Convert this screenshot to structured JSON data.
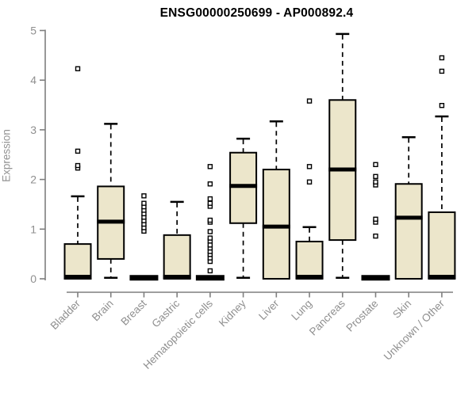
{
  "chart_data": {
    "type": "boxplot",
    "title": "ENSG00000250699 - AP000892.4",
    "ylabel": "Expression",
    "xlabel": "",
    "ylim": [
      0,
      5
    ],
    "yticks": [
      0,
      1,
      2,
      3,
      4,
      5
    ],
    "grid": false,
    "legend": "none",
    "categories": [
      "Bladder",
      "Brain",
      "Breast",
      "Gastric",
      "Hematopoietic cells",
      "Kidney",
      "Liver",
      "Lung",
      "Pancreas",
      "Prostate",
      "Skin",
      "Unknown / Other"
    ],
    "series": [
      {
        "category": "Bladder",
        "whisker_low": 0,
        "q1": 0,
        "median": 0.04,
        "q3": 0.7,
        "whisker_high": 1.66,
        "outliers": [
          2.23,
          2.28,
          2.57,
          4.23
        ]
      },
      {
        "category": "Brain",
        "whisker_low": 0.02,
        "q1": 0.4,
        "median": 1.15,
        "q3": 1.86,
        "whisker_high": 3.12,
        "outliers": []
      },
      {
        "category": "Breast",
        "whisker_low": 0,
        "q1": 0,
        "median": 0.02,
        "q3": 0,
        "whisker_high": 0,
        "outliers": [
          0.96,
          1.03,
          1.1,
          1.17,
          1.24,
          1.31,
          1.38,
          1.45,
          1.52,
          1.67
        ]
      },
      {
        "category": "Gastric",
        "whisker_low": 0,
        "q1": 0,
        "median": 0.04,
        "q3": 0.88,
        "whisker_high": 1.55,
        "outliers": []
      },
      {
        "category": "Hematopoietic cells",
        "whisker_low": 0,
        "q1": 0,
        "median": 0.02,
        "q3": 0,
        "whisker_high": 0,
        "outliers": [
          0.16,
          0.35,
          0.42,
          0.49,
          0.55,
          0.62,
          0.68,
          0.76,
          0.82,
          0.95,
          1.14,
          1.18,
          1.46,
          1.52,
          1.61,
          1.91,
          2.26
        ]
      },
      {
        "category": "Kidney",
        "whisker_low": 0.02,
        "q1": 1.12,
        "median": 1.87,
        "q3": 2.54,
        "whisker_high": 2.82,
        "outliers": []
      },
      {
        "category": "Liver",
        "whisker_low": 0,
        "q1": 0,
        "median": 1.05,
        "q3": 2.2,
        "whisker_high": 3.17,
        "outliers": []
      },
      {
        "category": "Lung",
        "whisker_low": 0,
        "q1": 0,
        "median": 0.04,
        "q3": 0.75,
        "whisker_high": 1.04,
        "outliers": [
          1.95,
          2.26,
          3.58
        ]
      },
      {
        "category": "Pancreas",
        "whisker_low": 0.02,
        "q1": 0.78,
        "median": 2.2,
        "q3": 3.6,
        "whisker_high": 4.93,
        "outliers": []
      },
      {
        "category": "Prostate",
        "whisker_low": 0,
        "q1": 0,
        "median": 0.02,
        "q3": 0,
        "whisker_high": 0,
        "outliers": [
          0.86,
          1.14,
          1.2,
          1.89,
          1.95,
          2.06,
          2.3
        ]
      },
      {
        "category": "Skin",
        "whisker_low": 0,
        "q1": 0,
        "median": 1.23,
        "q3": 1.91,
        "whisker_high": 2.85,
        "outliers": []
      },
      {
        "category": "Unknown / Other",
        "whisker_low": 0,
        "q1": 0,
        "median": 0.04,
        "q3": 1.34,
        "whisker_high": 3.27,
        "outliers": [
          3.49,
          4.18,
          4.45
        ]
      }
    ],
    "colors": {
      "box_fill": "#ECE6CB",
      "box_stroke": "#000000",
      "median": "#000000",
      "whisker": "#000000",
      "outlier_fill": "#ffffff",
      "outlier_stroke": "#000000",
      "axis": "#7f7f7f",
      "tick_label": "#8f8f8f",
      "title": "#000000",
      "background": "#ffffff"
    }
  }
}
